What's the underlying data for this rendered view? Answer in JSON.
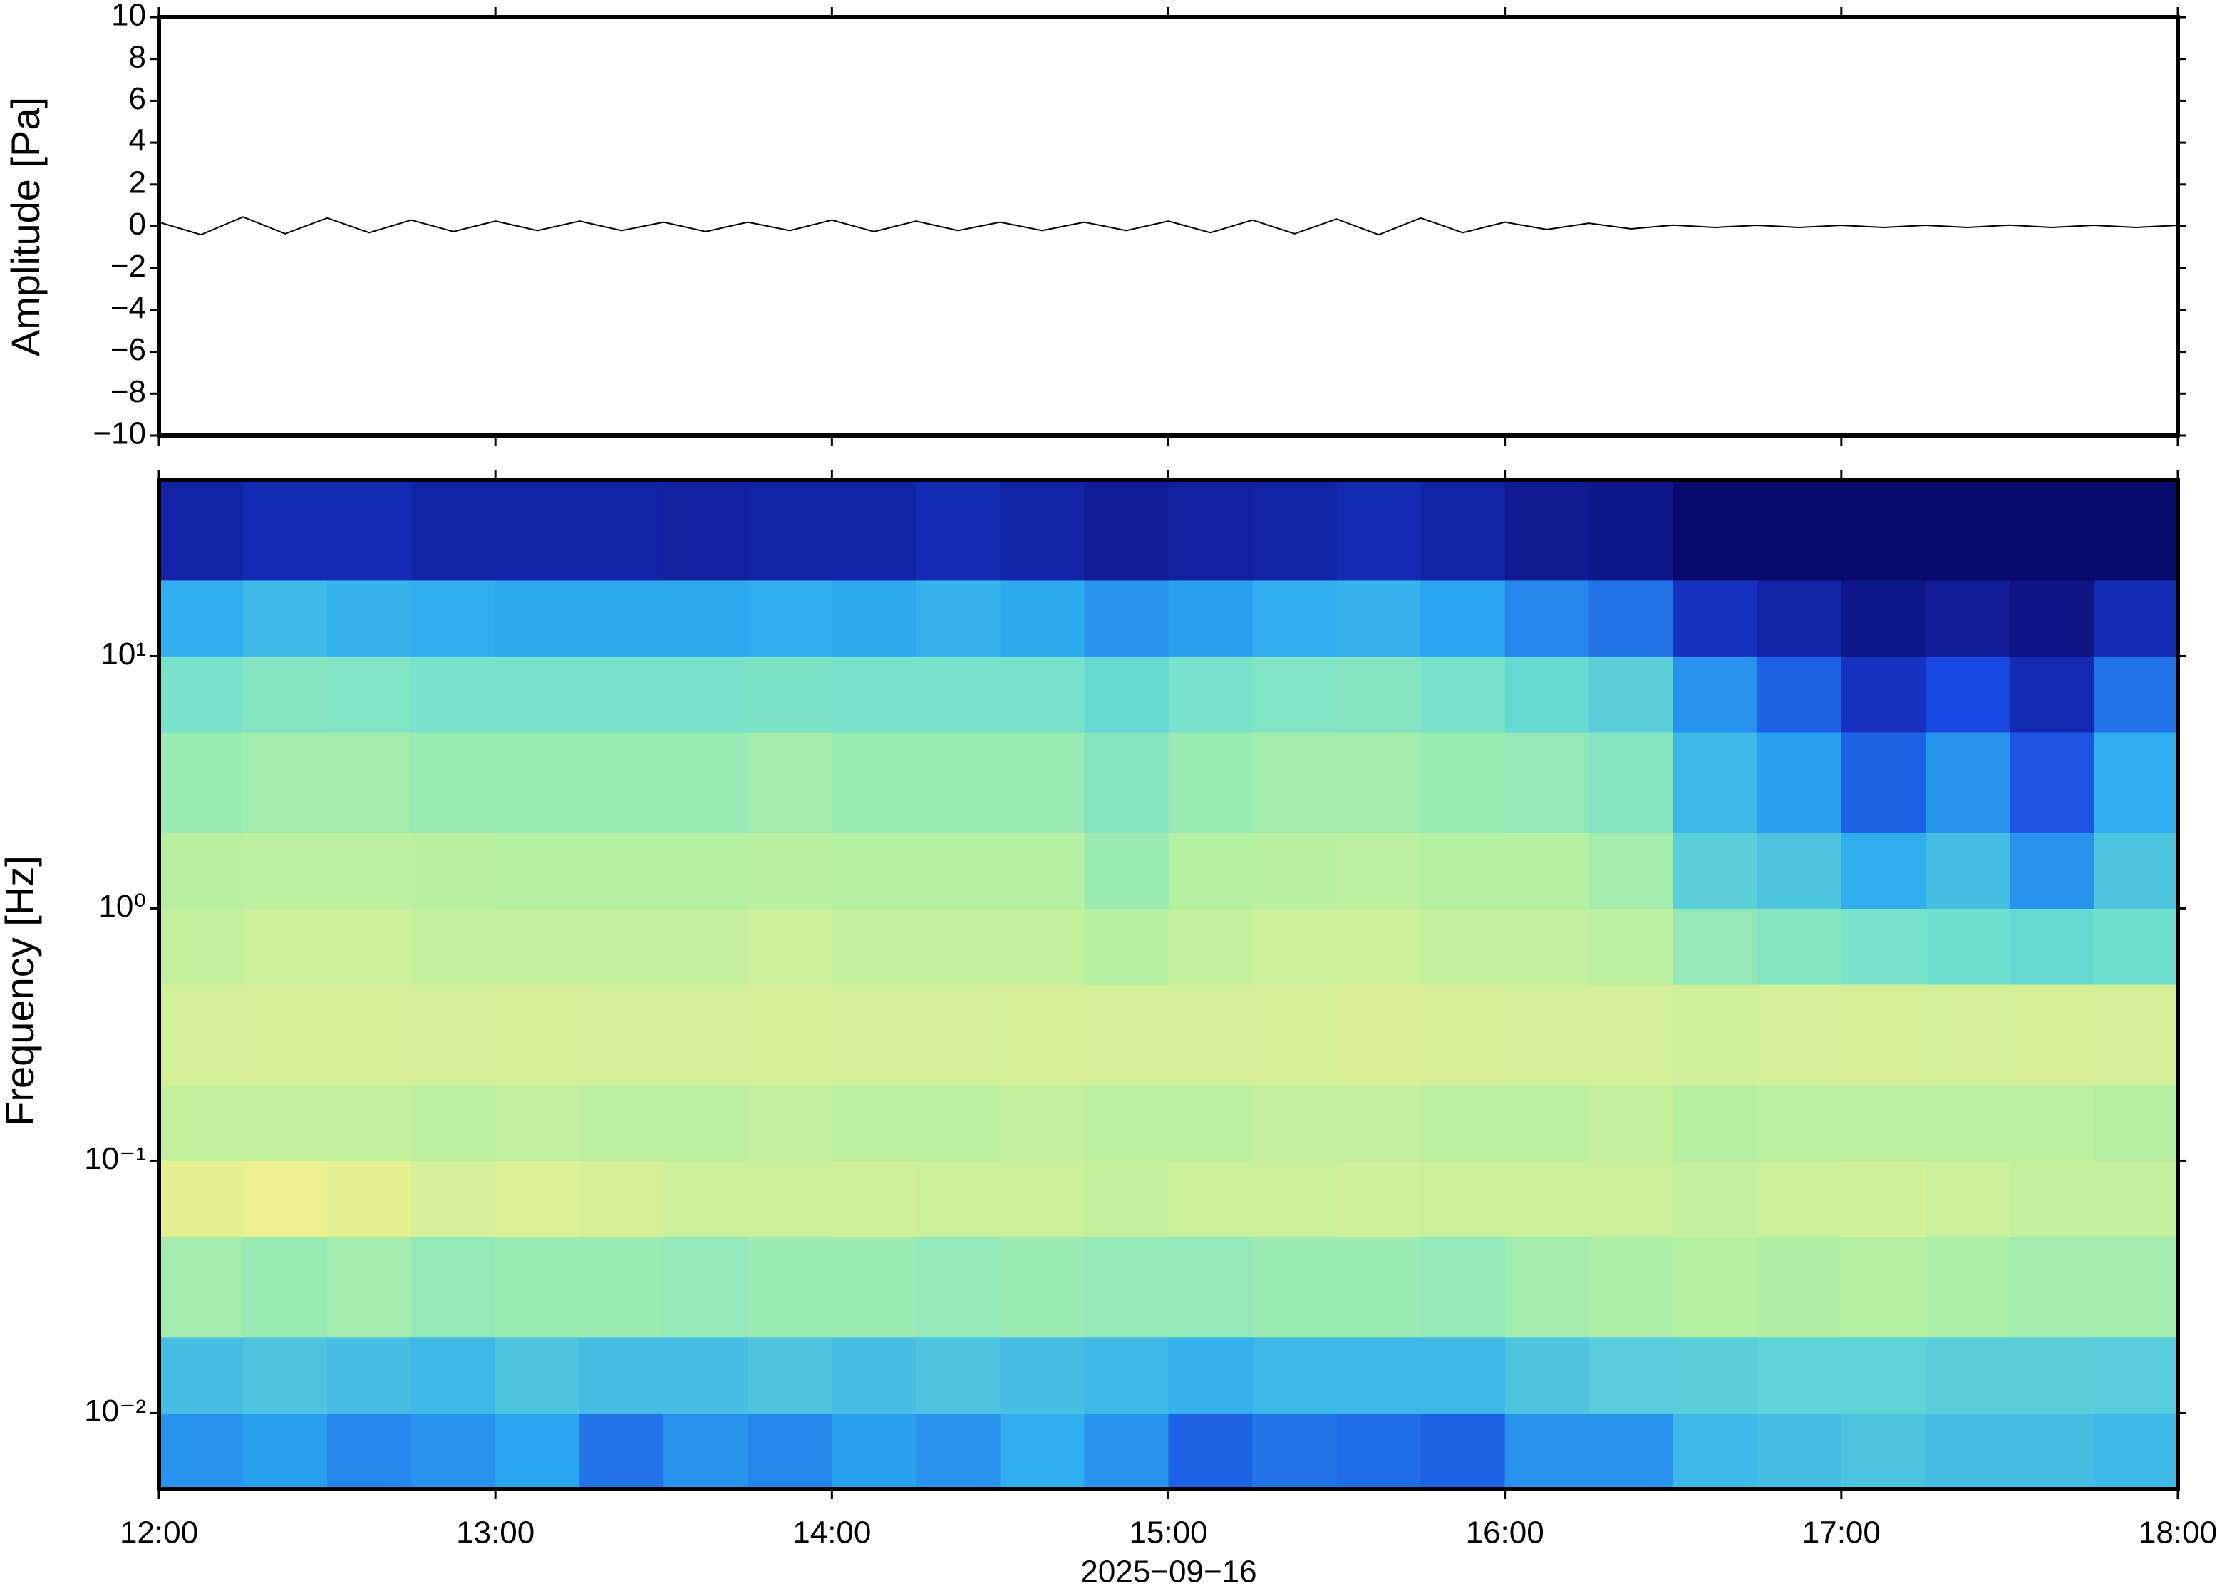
{
  "chart_data": [
    {
      "type": "line",
      "ylabel": "Amplitude [Pa]",
      "color": "#000000",
      "x": [
        12,
        12.125,
        12.25,
        12.375,
        12.5,
        12.625,
        12.75,
        12.875,
        13,
        13.125,
        13.25,
        13.375,
        13.5,
        13.625,
        13.75,
        13.875,
        14,
        14.125,
        14.25,
        14.375,
        14.5,
        14.625,
        14.75,
        14.875,
        15,
        15.125,
        15.25,
        15.375,
        15.5,
        15.625,
        15.75,
        15.875,
        16,
        16.125,
        16.25,
        16.375,
        16.5,
        16.625,
        16.75,
        16.875,
        17,
        17.125,
        17.25,
        17.375,
        17.5,
        17.625,
        17.75,
        17.875,
        18
      ],
      "values": [
        0.2,
        -0.4,
        0.45,
        -0.35,
        0.4,
        -0.3,
        0.3,
        -0.25,
        0.25,
        -0.2,
        0.25,
        -0.2,
        0.2,
        -0.25,
        0.2,
        -0.2,
        0.3,
        -0.25,
        0.25,
        -0.2,
        0.2,
        -0.2,
        0.2,
        -0.2,
        0.25,
        -0.3,
        0.3,
        -0.35,
        0.35,
        -0.4,
        0.4,
        -0.3,
        0.2,
        -0.15,
        0.15,
        -0.12,
        0.06,
        -0.05,
        0.05,
        -0.05,
        0.05,
        -0.05,
        0.05,
        -0.05,
        0.06,
        -0.05,
        0.05,
        -0.05,
        0.05
      ],
      "ylim": [
        -10,
        10
      ],
      "yticks": [
        {
          "value": -10,
          "label": "−10"
        },
        {
          "value": -8,
          "label": "−8"
        },
        {
          "value": -6,
          "label": "−6"
        },
        {
          "value": -4,
          "label": "−4"
        },
        {
          "value": -2,
          "label": "−2"
        },
        0,
        2,
        4,
        6,
        8,
        10
      ]
    },
    {
      "type": "heatmap",
      "ylabel": "Frequency [Hz]",
      "xlabel": "2025−09−16",
      "log_y": true,
      "xlim": [
        12,
        18
      ],
      "xticks": [
        {
          "value": 12,
          "label": "12:00"
        },
        {
          "value": 13,
          "label": "13:00"
        },
        {
          "value": 14,
          "label": "14:00"
        },
        {
          "value": 15,
          "label": "15:00"
        },
        {
          "value": 16,
          "label": "16:00"
        },
        {
          "value": 17,
          "label": "17:00"
        },
        {
          "value": 18,
          "label": "18:00"
        }
      ],
      "ylim": [
        0.005,
        50
      ],
      "yticks": [
        {
          "value": 0.01,
          "label": "10⁻²"
        },
        {
          "value": 0.1,
          "label": "10⁻¹"
        },
        {
          "value": 1,
          "label": "10⁰"
        },
        {
          "value": 10,
          "label": "10¹"
        }
      ],
      "x_bins": [
        12,
        12.25,
        12.5,
        12.75,
        13,
        13.25,
        13.5,
        13.75,
        14,
        14.25,
        14.5,
        14.75,
        15,
        15.25,
        15.5,
        15.75,
        16,
        16.25,
        16.5,
        16.75,
        17,
        17.25,
        17.5,
        17.75,
        18
      ],
      "y_bins": [
        0.005,
        0.01,
        0.02,
        0.05,
        0.1,
        0.2,
        0.5,
        1,
        2,
        5,
        10,
        20,
        50
      ],
      "zlim": [
        0,
        1
      ],
      "colormap": [
        "#0a0a6e",
        "#1a3fe0",
        "#2aa8f0",
        "#6fe0d0",
        "#b8f0a0",
        "#f0f090",
        "#f0c080"
      ],
      "z": [
        [
          0.3,
          0.32,
          0.28,
          0.3,
          0.33,
          0.25,
          0.3,
          0.28,
          0.32,
          0.3,
          0.35,
          0.3,
          0.22,
          0.25,
          0.24,
          0.22,
          0.3,
          0.3,
          0.38,
          0.4,
          0.42,
          0.4,
          0.4,
          0.38
        ],
        [
          0.4,
          0.42,
          0.4,
          0.38,
          0.42,
          0.4,
          0.4,
          0.42,
          0.4,
          0.42,
          0.4,
          0.38,
          0.36,
          0.38,
          0.38,
          0.38,
          0.42,
          0.44,
          0.45,
          0.46,
          0.46,
          0.45,
          0.45,
          0.44
        ],
        [
          0.62,
          0.6,
          0.62,
          0.58,
          0.6,
          0.6,
          0.58,
          0.6,
          0.6,
          0.58,
          0.6,
          0.58,
          0.58,
          0.6,
          0.6,
          0.58,
          0.62,
          0.64,
          0.66,
          0.65,
          0.66,
          0.64,
          0.62,
          0.62
        ],
        [
          0.8,
          0.82,
          0.8,
          0.75,
          0.78,
          0.76,
          0.72,
          0.72,
          0.74,
          0.72,
          0.72,
          0.7,
          0.72,
          0.72,
          0.74,
          0.72,
          0.72,
          0.72,
          0.7,
          0.72,
          0.74,
          0.72,
          0.7,
          0.7
        ],
        [
          0.7,
          0.7,
          0.7,
          0.68,
          0.7,
          0.68,
          0.68,
          0.7,
          0.68,
          0.68,
          0.7,
          0.68,
          0.68,
          0.7,
          0.7,
          0.68,
          0.68,
          0.7,
          0.66,
          0.68,
          0.68,
          0.68,
          0.68,
          0.66
        ],
        [
          0.75,
          0.76,
          0.76,
          0.75,
          0.76,
          0.75,
          0.75,
          0.76,
          0.75,
          0.75,
          0.76,
          0.75,
          0.75,
          0.76,
          0.77,
          0.76,
          0.75,
          0.75,
          0.74,
          0.75,
          0.76,
          0.75,
          0.76,
          0.75
        ],
        [
          0.7,
          0.72,
          0.72,
          0.7,
          0.7,
          0.7,
          0.7,
          0.72,
          0.7,
          0.7,
          0.7,
          0.66,
          0.7,
          0.72,
          0.72,
          0.7,
          0.7,
          0.68,
          0.58,
          0.55,
          0.52,
          0.5,
          0.48,
          0.5
        ],
        [
          0.67,
          0.68,
          0.68,
          0.67,
          0.66,
          0.66,
          0.66,
          0.67,
          0.66,
          0.66,
          0.66,
          0.6,
          0.66,
          0.67,
          0.68,
          0.66,
          0.66,
          0.62,
          0.45,
          0.42,
          0.35,
          0.4,
          0.3,
          0.42
        ],
        [
          0.6,
          0.62,
          0.62,
          0.6,
          0.6,
          0.6,
          0.6,
          0.62,
          0.6,
          0.6,
          0.6,
          0.55,
          0.6,
          0.62,
          0.62,
          0.6,
          0.58,
          0.55,
          0.38,
          0.32,
          0.22,
          0.3,
          0.2,
          0.35
        ],
        [
          0.52,
          0.55,
          0.54,
          0.52,
          0.52,
          0.52,
          0.52,
          0.53,
          0.52,
          0.52,
          0.52,
          0.48,
          0.52,
          0.54,
          0.55,
          0.52,
          0.48,
          0.45,
          0.3,
          0.22,
          0.12,
          0.18,
          0.1,
          0.25
        ],
        [
          0.35,
          0.38,
          0.36,
          0.35,
          0.34,
          0.34,
          0.34,
          0.35,
          0.34,
          0.36,
          0.34,
          0.3,
          0.32,
          0.35,
          0.36,
          0.33,
          0.28,
          0.25,
          0.12,
          0.08,
          0.04,
          0.06,
          0.03,
          0.1
        ],
        [
          0.08,
          0.1,
          0.1,
          0.08,
          0.08,
          0.08,
          0.07,
          0.08,
          0.08,
          0.1,
          0.08,
          0.06,
          0.07,
          0.08,
          0.1,
          0.08,
          0.05,
          0.04,
          0,
          0,
          0,
          0,
          0,
          0
        ]
      ]
    }
  ]
}
